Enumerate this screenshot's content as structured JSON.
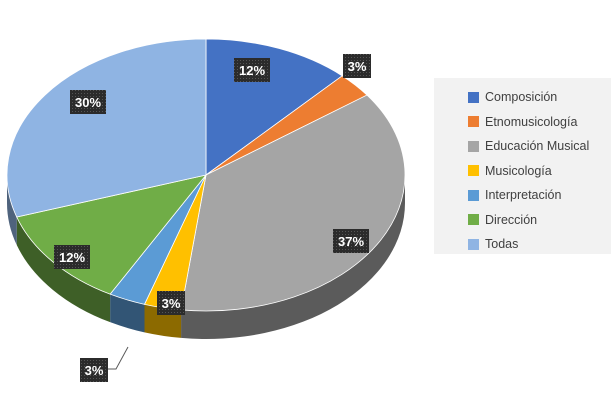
{
  "chart_data": {
    "type": "pie",
    "style": "3d",
    "categories": [
      "Composición",
      "Etnomusicología",
      "Educación Musical",
      "Musicología",
      "Interpretación",
      "Dirección",
      "Todas"
    ],
    "values": [
      12,
      3,
      37,
      3,
      3,
      12,
      30
    ],
    "data_labels": [
      "12%",
      "3%",
      "37%",
      "3%",
      "3%",
      "12%",
      "30%"
    ],
    "colors": [
      "#4472c4",
      "#ed7d31",
      "#a5a5a5",
      "#ffc000",
      "#5b9bd5",
      "#70ad47",
      "#8fb4e3"
    ],
    "title": "",
    "legend_position": "right"
  }
}
